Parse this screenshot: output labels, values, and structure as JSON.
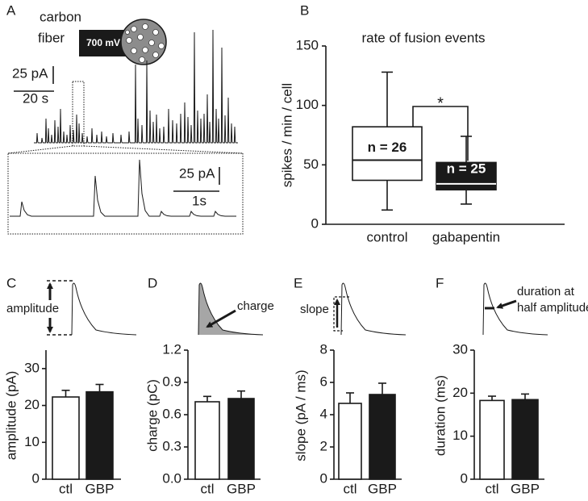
{
  "chart_data": [
    {
      "type": "trace",
      "panel": "A",
      "annotations": [
        "carbon",
        "fiber",
        "700 mV",
        "25 pA",
        "20 s",
        "25 pA",
        "1s"
      ]
    },
    {
      "type": "box",
      "panel": "B",
      "title": "rate of fusion events",
      "ylabel": "spikes / min / cell",
      "categories": [
        "control",
        "gabapentin"
      ],
      "boxes": [
        {
          "whislo": 12,
          "q1": 37,
          "med": 54,
          "q3": 82,
          "whishi": 128,
          "label": "n = 26"
        },
        {
          "whislo": 17,
          "q1": 29,
          "med": 34,
          "q3": 52,
          "whishi": 74,
          "label": "n = 25"
        }
      ],
      "colors": [
        "#ffffff",
        "#1a1a1a"
      ],
      "significance": "*",
      "ylim": [
        0,
        150
      ],
      "yticks": [
        0,
        50,
        100,
        150
      ]
    },
    {
      "type": "bar",
      "panel": "C",
      "annotation": "amplitude",
      "ylabel": "amplitude (pA)",
      "categories": [
        "ctl",
        "GBP"
      ],
      "values": [
        22.3,
        23.7
      ],
      "errors": [
        1.8,
        2.0
      ],
      "colors": [
        "#ffffff",
        "#1a1a1a"
      ],
      "ylim": [
        0,
        35
      ],
      "yticks": [
        0,
        10,
        20,
        30
      ]
    },
    {
      "type": "bar",
      "panel": "D",
      "annotation": "charge",
      "ylabel": "charge (pC)",
      "categories": [
        "ctl",
        "GBP"
      ],
      "values": [
        0.72,
        0.75
      ],
      "errors": [
        0.05,
        0.07
      ],
      "colors": [
        "#ffffff",
        "#1a1a1a"
      ],
      "ylim": [
        0,
        1.2
      ],
      "yticks": [
        {
          "value": 0,
          "label": "0.0"
        },
        0.3,
        0.6,
        0.9,
        1.2
      ]
    },
    {
      "type": "bar",
      "panel": "E",
      "annotation": "slope",
      "ylabel": "slope (pA / ms)",
      "categories": [
        "ctl",
        "GBP"
      ],
      "values": [
        4.7,
        5.25
      ],
      "errors": [
        0.65,
        0.7
      ],
      "colors": [
        "#ffffff",
        "#1a1a1a"
      ],
      "ylim": [
        0,
        8
      ],
      "yticks": [
        0,
        2,
        4,
        6,
        8
      ]
    },
    {
      "type": "bar",
      "panel": "F",
      "annotation": [
        "duration at",
        "half amplitude"
      ],
      "ylabel": "duration (ms)",
      "categories": [
        "ctl",
        "GBP"
      ],
      "values": [
        18.3,
        18.5
      ],
      "errors": [
        1.0,
        1.3
      ],
      "colors": [
        "#ffffff",
        "#1a1a1a"
      ],
      "ylim": [
        0,
        30
      ],
      "yticks": [
        0,
        10,
        20,
        30
      ]
    }
  ]
}
